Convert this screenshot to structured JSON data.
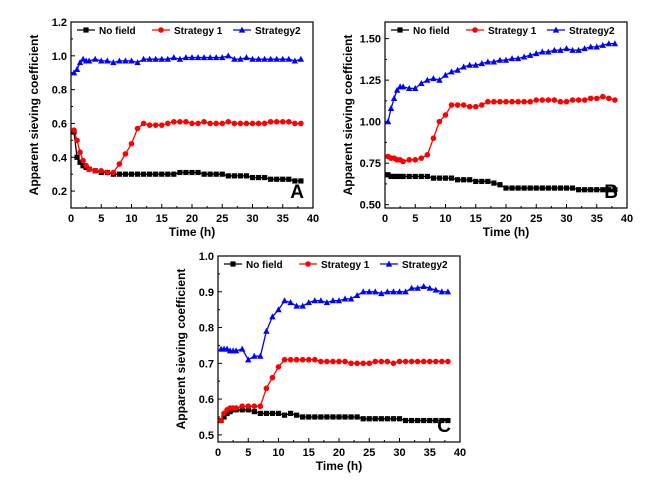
{
  "colors": {
    "no_field": "#000000",
    "strategy1": "#ff0000",
    "strategy2": "#0000ff"
  },
  "chart_data": [
    {
      "type": "line",
      "panel_label": "A",
      "xlabel": "Time (h)",
      "ylabel": "Apparent sieving coefficient",
      "xlim": [
        0,
        40
      ],
      "ylim": [
        0.1,
        1.2
      ],
      "xticks": [
        0,
        5,
        10,
        15,
        20,
        25,
        30,
        35,
        40
      ],
      "yticks": [
        0.2,
        0.4,
        0.6,
        0.8,
        1.0,
        1.2
      ],
      "ytick_labels": [
        "0.2",
        "0.4",
        "0.6",
        "0.8",
        "1.0",
        "1.2"
      ],
      "legend": [
        "No field",
        "Strategy 1",
        "Strategy2"
      ],
      "legend_position": "top",
      "series": [
        {
          "name": "No field",
          "marker": "square",
          "color": "#000000",
          "x": [
            0.5,
            1,
            1.5,
            2,
            2.5,
            3,
            4,
            5,
            6,
            7,
            8,
            9,
            10,
            11,
            12,
            13,
            14,
            15,
            16,
            17,
            18,
            19,
            20,
            21,
            22,
            23,
            24,
            25,
            26,
            27,
            28,
            29,
            30,
            31,
            32,
            33,
            34,
            35,
            36,
            37,
            38
          ],
          "values": [
            0.55,
            0.4,
            0.37,
            0.35,
            0.34,
            0.33,
            0.32,
            0.31,
            0.31,
            0.3,
            0.3,
            0.3,
            0.3,
            0.3,
            0.3,
            0.3,
            0.3,
            0.3,
            0.3,
            0.3,
            0.31,
            0.31,
            0.31,
            0.31,
            0.3,
            0.3,
            0.3,
            0.3,
            0.29,
            0.29,
            0.29,
            0.29,
            0.28,
            0.28,
            0.28,
            0.27,
            0.27,
            0.27,
            0.27,
            0.26,
            0.26
          ]
        },
        {
          "name": "Strategy 1",
          "marker": "circle",
          "color": "#ff0000",
          "x": [
            0.5,
            1,
            1.5,
            2,
            2.5,
            3,
            4,
            5,
            6,
            7,
            8,
            9,
            10,
            11,
            12,
            13,
            14,
            15,
            16,
            17,
            18,
            19,
            20,
            21,
            22,
            23,
            24,
            25,
            26,
            27,
            28,
            29,
            30,
            31,
            32,
            33,
            34,
            35,
            36,
            37,
            38
          ],
          "values": [
            0.56,
            0.5,
            0.43,
            0.38,
            0.35,
            0.33,
            0.32,
            0.32,
            0.31,
            0.31,
            0.36,
            0.42,
            0.48,
            0.57,
            0.6,
            0.59,
            0.59,
            0.59,
            0.6,
            0.61,
            0.61,
            0.61,
            0.6,
            0.6,
            0.61,
            0.6,
            0.6,
            0.6,
            0.61,
            0.6,
            0.6,
            0.6,
            0.6,
            0.6,
            0.6,
            0.61,
            0.61,
            0.61,
            0.61,
            0.6,
            0.6
          ]
        },
        {
          "name": "Strategy2",
          "marker": "triangle",
          "color": "#0000ff",
          "x": [
            0.5,
            1,
            1.5,
            2,
            2.5,
            3,
            4,
            5,
            6,
            7,
            8,
            9,
            10,
            11,
            12,
            13,
            14,
            15,
            16,
            17,
            18,
            19,
            20,
            21,
            22,
            23,
            24,
            25,
            26,
            27,
            28,
            29,
            30,
            31,
            32,
            33,
            34,
            35,
            36,
            37,
            38
          ],
          "values": [
            0.9,
            0.92,
            0.96,
            0.98,
            0.97,
            0.97,
            0.98,
            0.97,
            0.97,
            0.96,
            0.97,
            0.97,
            0.97,
            0.96,
            0.98,
            0.98,
            0.98,
            0.98,
            0.98,
            0.99,
            0.98,
            0.99,
            0.99,
            0.99,
            0.99,
            0.99,
            0.99,
            0.99,
            1.0,
            0.98,
            0.98,
            0.99,
            0.98,
            0.98,
            0.98,
            0.98,
            0.98,
            0.98,
            0.98,
            0.97,
            0.98
          ]
        }
      ]
    },
    {
      "type": "line",
      "panel_label": "B",
      "xlabel": "Time (h)",
      "ylabel": "Apparent sieving coefficient",
      "xlim": [
        0,
        40
      ],
      "ylim": [
        0.48,
        1.6
      ],
      "xticks": [
        0,
        5,
        10,
        15,
        20,
        25,
        30,
        35,
        40
      ],
      "yticks": [
        0.5,
        0.75,
        1.0,
        1.25,
        1.5
      ],
      "ytick_labels": [
        "0.50",
        "0.75",
        "1.00",
        "1.25",
        "1.50"
      ],
      "legend": [
        "No field",
        "Strategy 1",
        "Strategy2"
      ],
      "legend_position": "top",
      "series": [
        {
          "name": "No field",
          "marker": "square",
          "color": "#000000",
          "x": [
            0.5,
            1,
            1.5,
            2,
            2.5,
            3,
            4,
            5,
            6,
            7,
            8,
            9,
            10,
            11,
            12,
            13,
            14,
            15,
            16,
            17,
            18,
            19,
            20,
            21,
            22,
            23,
            24,
            25,
            26,
            27,
            28,
            29,
            30,
            31,
            32,
            33,
            34,
            35,
            36,
            37,
            38
          ],
          "values": [
            0.68,
            0.67,
            0.67,
            0.67,
            0.67,
            0.67,
            0.67,
            0.67,
            0.67,
            0.67,
            0.66,
            0.66,
            0.66,
            0.66,
            0.65,
            0.65,
            0.65,
            0.64,
            0.64,
            0.64,
            0.63,
            0.62,
            0.6,
            0.6,
            0.6,
            0.6,
            0.6,
            0.6,
            0.6,
            0.6,
            0.6,
            0.6,
            0.6,
            0.6,
            0.59,
            0.59,
            0.59,
            0.59,
            0.59,
            0.59,
            0.59
          ]
        },
        {
          "name": "Strategy 1",
          "marker": "circle",
          "color": "#ff0000",
          "x": [
            0.5,
            1,
            1.5,
            2,
            2.5,
            3,
            4,
            5,
            6,
            7,
            8,
            9,
            10,
            11,
            12,
            13,
            14,
            15,
            16,
            17,
            18,
            19,
            20,
            21,
            22,
            23,
            24,
            25,
            26,
            27,
            28,
            29,
            30,
            31,
            32,
            33,
            34,
            35,
            36,
            37,
            38
          ],
          "values": [
            0.79,
            0.78,
            0.78,
            0.77,
            0.77,
            0.76,
            0.77,
            0.77,
            0.78,
            0.8,
            0.9,
            1.0,
            1.04,
            1.1,
            1.1,
            1.1,
            1.09,
            1.09,
            1.1,
            1.12,
            1.12,
            1.12,
            1.12,
            1.12,
            1.12,
            1.12,
            1.12,
            1.13,
            1.13,
            1.13,
            1.13,
            1.12,
            1.12,
            1.13,
            1.13,
            1.13,
            1.14,
            1.14,
            1.15,
            1.14,
            1.13
          ]
        },
        {
          "name": "Strategy2",
          "marker": "triangle",
          "color": "#0000ff",
          "x": [
            0.5,
            1,
            1.5,
            2,
            2.5,
            3,
            4,
            5,
            6,
            7,
            8,
            9,
            10,
            11,
            12,
            13,
            14,
            15,
            16,
            17,
            18,
            19,
            20,
            21,
            22,
            23,
            24,
            25,
            26,
            27,
            28,
            29,
            30,
            31,
            32,
            33,
            34,
            35,
            36,
            37,
            38
          ],
          "values": [
            1.0,
            1.08,
            1.14,
            1.19,
            1.21,
            1.21,
            1.2,
            1.2,
            1.23,
            1.25,
            1.26,
            1.25,
            1.28,
            1.3,
            1.31,
            1.33,
            1.34,
            1.34,
            1.35,
            1.36,
            1.36,
            1.37,
            1.37,
            1.38,
            1.38,
            1.39,
            1.4,
            1.41,
            1.42,
            1.42,
            1.43,
            1.43,
            1.44,
            1.43,
            1.43,
            1.44,
            1.45,
            1.45,
            1.46,
            1.47,
            1.47
          ]
        }
      ]
    },
    {
      "type": "line",
      "panel_label": "C",
      "xlabel": "Time (h)",
      "ylabel": "Apparent sieving coefficient",
      "xlim": [
        0,
        40
      ],
      "ylim": [
        0.48,
        1.0
      ],
      "xticks": [
        0,
        5,
        10,
        15,
        20,
        25,
        30,
        35,
        40
      ],
      "yticks": [
        0.5,
        0.6,
        0.7,
        0.8,
        0.9,
        1.0
      ],
      "ytick_labels": [
        "0.5",
        "0.6",
        "0.7",
        "0.8",
        "0.9",
        "1.0"
      ],
      "legend": [
        "No field",
        "Strategy 1",
        "Strategy2"
      ],
      "legend_position": "top",
      "series": [
        {
          "name": "No field",
          "marker": "square",
          "color": "#000000",
          "x": [
            0.5,
            1,
            1.5,
            2,
            2.5,
            3,
            4,
            5,
            6,
            7,
            8,
            9,
            10,
            11,
            12,
            13,
            14,
            15,
            16,
            17,
            18,
            19,
            20,
            21,
            22,
            23,
            24,
            25,
            26,
            27,
            28,
            29,
            30,
            31,
            32,
            33,
            34,
            35,
            36,
            37,
            38
          ],
          "values": [
            0.54,
            0.55,
            0.56,
            0.565,
            0.57,
            0.57,
            0.57,
            0.57,
            0.565,
            0.56,
            0.56,
            0.56,
            0.56,
            0.555,
            0.56,
            0.555,
            0.55,
            0.55,
            0.55,
            0.55,
            0.55,
            0.55,
            0.55,
            0.55,
            0.55,
            0.55,
            0.545,
            0.545,
            0.545,
            0.545,
            0.545,
            0.545,
            0.545,
            0.54,
            0.54,
            0.54,
            0.54,
            0.54,
            0.54,
            0.54,
            0.54
          ]
        },
        {
          "name": "Strategy 1",
          "marker": "circle",
          "color": "#ff0000",
          "x": [
            0.5,
            1,
            1.5,
            2,
            2.5,
            3,
            4,
            5,
            6,
            7,
            8,
            9,
            10,
            11,
            12,
            13,
            14,
            15,
            16,
            17,
            18,
            19,
            20,
            21,
            22,
            23,
            24,
            25,
            26,
            27,
            28,
            29,
            30,
            31,
            32,
            33,
            34,
            35,
            36,
            37,
            38
          ],
          "values": [
            0.54,
            0.56,
            0.57,
            0.575,
            0.575,
            0.575,
            0.58,
            0.58,
            0.58,
            0.58,
            0.63,
            0.66,
            0.69,
            0.71,
            0.71,
            0.71,
            0.71,
            0.71,
            0.71,
            0.705,
            0.705,
            0.705,
            0.705,
            0.705,
            0.7,
            0.7,
            0.7,
            0.7,
            0.705,
            0.705,
            0.705,
            0.7,
            0.705,
            0.705,
            0.705,
            0.705,
            0.705,
            0.705,
            0.705,
            0.705,
            0.705
          ]
        },
        {
          "name": "Strategy2",
          "marker": "triangle",
          "color": "#0000ff",
          "x": [
            0.5,
            1,
            1.5,
            2,
            2.5,
            3,
            4,
            5,
            6,
            7,
            8,
            9,
            10,
            11,
            12,
            13,
            14,
            15,
            16,
            17,
            18,
            19,
            20,
            21,
            22,
            23,
            24,
            25,
            26,
            27,
            28,
            29,
            30,
            31,
            32,
            33,
            34,
            35,
            36,
            37,
            38
          ],
          "values": [
            0.74,
            0.74,
            0.74,
            0.735,
            0.735,
            0.735,
            0.74,
            0.71,
            0.72,
            0.72,
            0.79,
            0.83,
            0.85,
            0.875,
            0.87,
            0.86,
            0.86,
            0.87,
            0.875,
            0.875,
            0.87,
            0.875,
            0.875,
            0.88,
            0.88,
            0.89,
            0.9,
            0.9,
            0.9,
            0.895,
            0.9,
            0.9,
            0.9,
            0.9,
            0.91,
            0.91,
            0.915,
            0.91,
            0.905,
            0.9,
            0.9
          ]
        }
      ]
    }
  ]
}
